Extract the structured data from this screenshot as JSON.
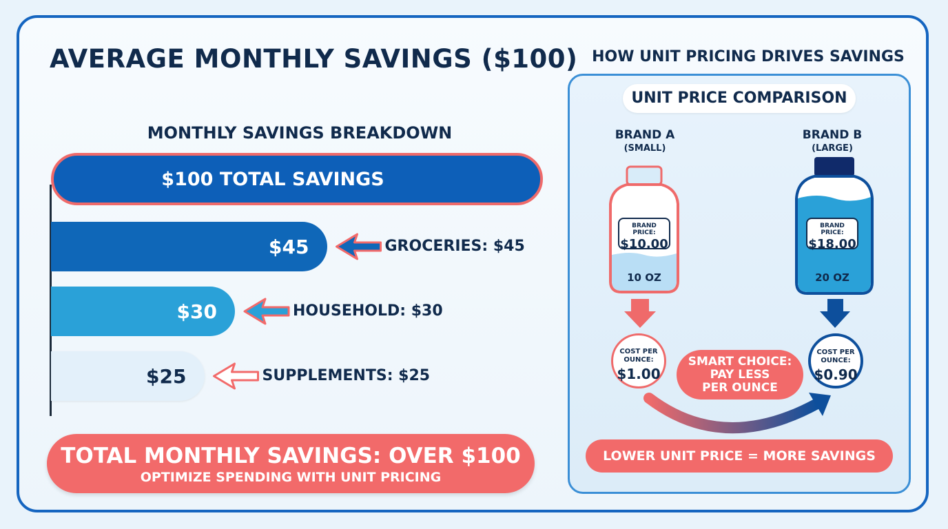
{
  "title": "AVERAGE MONTHLY SAVINGS ($100)",
  "chart_data": {
    "type": "bar",
    "title": "MONTHLY SAVINGS BREAKDOWN",
    "total": {
      "label": "$100 TOTAL SAVINGS",
      "value": 100
    },
    "categories": [
      "GROCERIES",
      "HOUSEHOLD",
      "SUPPLEMENTS"
    ],
    "values": [
      45,
      30,
      25
    ],
    "value_labels": [
      "$45",
      "$30",
      "$25"
    ],
    "annotations": [
      "GROCERIES: $45",
      "HOUSEHOLD: $30",
      "SUPPLEMENTS: $25"
    ],
    "colors": [
      "#0f67b8",
      "#2aa1d8",
      "#e3f0fa"
    ],
    "total_color": "#0d5fb8",
    "accent": "#f26a6a"
  },
  "summary": {
    "line1": "TOTAL MONTHLY SAVINGS: OVER $100",
    "line2": "OPTIMIZE SPENDING WITH UNIT PRICING"
  },
  "unit_pricing": {
    "title": "HOW UNIT PRICING DRIVES SAVINGS",
    "comparison_label": "UNIT PRICE COMPARISON",
    "brand_a": {
      "name": "BRAND A",
      "size": "(SMALL)",
      "price_label": "BRAND PRICE:",
      "price": "$10.00",
      "volume": "10 OZ",
      "cost_label": "COST PER OUNCE:",
      "cost": "$1.00"
    },
    "brand_b": {
      "name": "BRAND B",
      "size": "(LARGE)",
      "price_label": "BRAND PRICE:",
      "price": "$18.00",
      "volume": "20 OZ",
      "cost_label": "COST PER OUNCE:",
      "cost": "$0.90"
    },
    "smart_line1": "SMART CHOICE:",
    "smart_line2": "PAY LESS",
    "smart_line3": "PER OUNCE",
    "footer": "LOWER UNIT PRICE = MORE SAVINGS"
  }
}
